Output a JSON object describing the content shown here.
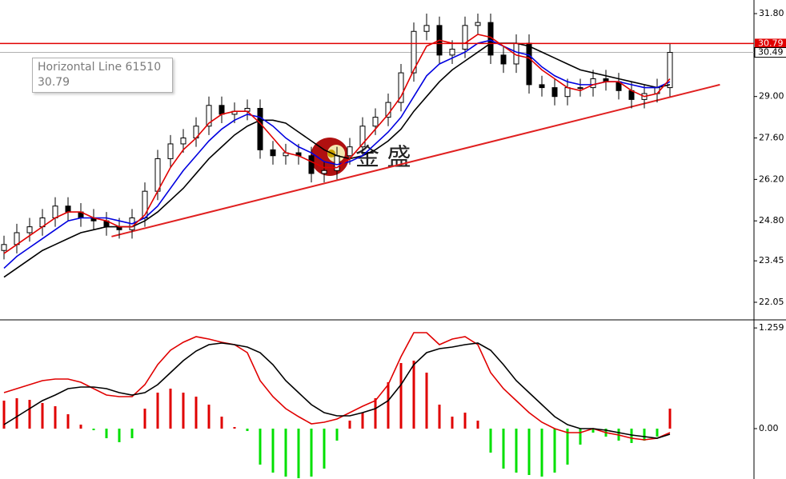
{
  "chart_data": [
    {
      "type": "candlestick",
      "open": [
        23.8,
        24.0,
        24.4,
        24.6,
        24.9,
        25.3,
        25.1,
        24.9,
        24.8,
        24.6,
        24.5,
        24.9,
        25.8,
        26.9,
        27.4,
        27.6,
        28.0,
        28.7,
        28.4,
        28.5,
        28.6,
        27.2,
        27.0,
        27.1,
        27.0,
        26.4,
        26.5,
        27.0,
        27.3,
        28.0,
        28.3,
        28.8,
        29.8,
        31.2,
        31.4,
        30.4,
        30.6,
        31.4,
        31.5,
        30.4,
        30.1,
        30.8,
        29.4,
        29.3,
        29.0,
        29.3,
        29.3,
        29.6,
        29.5,
        29.2,
        28.9,
        29.1,
        29.3
      ],
      "high": [
        24.3,
        24.7,
        24.9,
        25.2,
        25.6,
        25.6,
        25.4,
        25.2,
        25.1,
        24.9,
        25.2,
        26.1,
        27.2,
        27.7,
        27.9,
        28.3,
        29.0,
        29.0,
        28.8,
        28.9,
        28.9,
        27.5,
        27.4,
        27.4,
        27.3,
        26.8,
        27.3,
        27.6,
        28.3,
        28.6,
        29.1,
        30.1,
        31.5,
        31.8,
        31.7,
        30.9,
        31.7,
        31.8,
        31.8,
        30.7,
        31.1,
        31.1,
        29.7,
        29.6,
        29.6,
        29.6,
        29.9,
        29.9,
        29.8,
        29.5,
        29.4,
        29.6,
        30.8
      ],
      "low": [
        23.5,
        23.7,
        24.1,
        24.3,
        24.6,
        24.8,
        24.6,
        24.5,
        24.3,
        24.2,
        24.2,
        24.6,
        25.5,
        26.6,
        27.1,
        27.3,
        27.7,
        28.1,
        28.1,
        28.2,
        26.9,
        26.7,
        26.7,
        26.7,
        26.1,
        26.1,
        26.2,
        26.7,
        27.0,
        27.7,
        28.0,
        28.5,
        29.5,
        30.9,
        30.1,
        30.1,
        30.3,
        31.1,
        30.1,
        29.8,
        29.8,
        29.1,
        29.0,
        28.7,
        28.7,
        29.0,
        29.0,
        29.2,
        28.9,
        28.6,
        28.6,
        28.8,
        29.0
      ],
      "close": [
        24.0,
        24.4,
        24.6,
        24.9,
        25.3,
        25.1,
        24.9,
        24.8,
        24.6,
        24.5,
        24.9,
        25.8,
        26.9,
        27.4,
        27.6,
        28.0,
        28.7,
        28.4,
        28.5,
        28.6,
        27.2,
        27.0,
        27.1,
        27.0,
        26.4,
        26.5,
        27.0,
        27.3,
        28.0,
        28.3,
        28.8,
        29.8,
        31.2,
        31.4,
        30.4,
        30.6,
        31.4,
        31.5,
        30.4,
        30.1,
        30.8,
        29.4,
        29.3,
        29.0,
        29.3,
        29.3,
        29.6,
        29.5,
        29.2,
        28.9,
        29.1,
        29.3,
        30.49
      ],
      "series": [
        {
          "color": "#e00000",
          "values": [
            23.7,
            24.0,
            24.3,
            24.6,
            24.9,
            25.1,
            25.1,
            24.9,
            24.8,
            24.6,
            24.6,
            25.0,
            25.8,
            26.6,
            27.2,
            27.6,
            28.1,
            28.4,
            28.5,
            28.5,
            28.1,
            27.6,
            27.1,
            27.0,
            26.8,
            26.6,
            26.6,
            26.9,
            27.4,
            27.9,
            28.4,
            29.0,
            29.9,
            30.7,
            30.9,
            30.8,
            30.8,
            31.1,
            31.0,
            30.7,
            30.4,
            30.3,
            29.9,
            29.6,
            29.3,
            29.2,
            29.4,
            29.5,
            29.5,
            29.2,
            29.0,
            29.1,
            29.6
          ]
        },
        {
          "color": "#0000e0",
          "values": [
            23.2,
            23.6,
            23.9,
            24.2,
            24.5,
            24.8,
            24.9,
            24.9,
            24.9,
            24.8,
            24.7,
            24.9,
            25.3,
            25.9,
            26.5,
            27.0,
            27.5,
            27.9,
            28.2,
            28.4,
            28.3,
            28.0,
            27.6,
            27.3,
            27.1,
            26.8,
            26.7,
            26.8,
            27.0,
            27.4,
            27.8,
            28.3,
            29.0,
            29.7,
            30.1,
            30.3,
            30.5,
            30.8,
            30.9,
            30.7,
            30.5,
            30.4,
            30.0,
            29.7,
            29.5,
            29.4,
            29.4,
            29.5,
            29.5,
            29.4,
            29.3,
            29.3,
            29.5
          ]
        },
        {
          "color": "#000000",
          "values": [
            22.9,
            23.2,
            23.5,
            23.8,
            24.0,
            24.2,
            24.4,
            24.5,
            24.6,
            24.6,
            24.6,
            24.8,
            25.1,
            25.5,
            25.9,
            26.4,
            26.9,
            27.3,
            27.7,
            28.0,
            28.2,
            28.2,
            28.1,
            27.8,
            27.5,
            27.2,
            27.0,
            26.9,
            27.0,
            27.2,
            27.5,
            27.9,
            28.5,
            29.0,
            29.5,
            29.9,
            30.2,
            30.5,
            30.8,
            30.8,
            30.8,
            30.7,
            30.5,
            30.3,
            30.1,
            29.9,
            29.8,
            29.7,
            29.6,
            29.5,
            29.4,
            29.3,
            29.4
          ]
        }
      ],
      "trendline": {
        "x": [
          8.4,
          55.9
        ],
        "values": [
          24.27,
          29.4
        ],
        "color": "#e02020"
      },
      "hline": {
        "name": "Horizontal Line 61510",
        "value": 30.79,
        "label": "30.79",
        "color": "#e00000"
      },
      "last_price": {
        "value": 30.49,
        "label": "30.49"
      },
      "watermark": "金 盛",
      "ylim": [
        21.51,
        32.26
      ],
      "yticks": [
        {
          "value": 31.8,
          "label": "31.80"
        },
        {
          "value": 29,
          "label": "29.00"
        },
        {
          "value": 27.6,
          "label": "27.60"
        },
        {
          "value": 26.2,
          "label": "26.20"
        },
        {
          "value": 24.8,
          "label": "24.80"
        },
        {
          "value": 23.45,
          "label": "23.45"
        },
        {
          "value": 22.05,
          "label": "22.05"
        }
      ]
    },
    {
      "type": "macd",
      "histogram": {
        "up_color": "#e00000",
        "down_color": "#00e000",
        "values": [
          0.35,
          0.38,
          0.36,
          0.32,
          0.28,
          0.18,
          0.05,
          -0.02,
          -0.12,
          -0.17,
          -0.12,
          0.25,
          0.45,
          0.5,
          0.45,
          0.4,
          0.3,
          0.15,
          0.02,
          -0.03,
          -0.45,
          -0.55,
          -0.6,
          -0.62,
          -0.6,
          -0.5,
          -0.15,
          0.1,
          0.2,
          0.38,
          0.58,
          0.82,
          0.85,
          0.7,
          0.3,
          0.15,
          0.2,
          0.1,
          -0.3,
          -0.5,
          -0.55,
          -0.58,
          -0.6,
          -0.55,
          -0.45,
          -0.2,
          -0.05,
          -0.1,
          -0.15,
          -0.18,
          -0.15,
          -0.1,
          0.25
        ]
      },
      "series": [
        {
          "color": "#e00000",
          "values": [
            0.45,
            0.5,
            0.55,
            0.6,
            0.62,
            0.62,
            0.58,
            0.5,
            0.42,
            0.4,
            0.4,
            0.55,
            0.8,
            0.98,
            1.08,
            1.15,
            1.12,
            1.08,
            1.05,
            0.95,
            0.6,
            0.4,
            0.25,
            0.15,
            0.06,
            0.08,
            0.12,
            0.2,
            0.28,
            0.35,
            0.55,
            0.9,
            1.2,
            1.2,
            1.05,
            1.12,
            1.15,
            1.05,
            0.7,
            0.5,
            0.35,
            0.2,
            0.08,
            0.0,
            -0.05,
            -0.05,
            0.0,
            -0.05,
            -0.08,
            -0.12,
            -0.14,
            -0.12,
            -0.05
          ]
        },
        {
          "color": "#000000",
          "values": [
            0.05,
            0.15,
            0.25,
            0.35,
            0.42,
            0.5,
            0.52,
            0.52,
            0.5,
            0.45,
            0.42,
            0.45,
            0.55,
            0.7,
            0.85,
            0.97,
            1.05,
            1.07,
            1.05,
            1.02,
            0.95,
            0.8,
            0.6,
            0.45,
            0.3,
            0.2,
            0.16,
            0.16,
            0.2,
            0.25,
            0.35,
            0.55,
            0.8,
            0.95,
            1.0,
            1.02,
            1.05,
            1.07,
            0.98,
            0.8,
            0.6,
            0.45,
            0.3,
            0.15,
            0.05,
            0.0,
            0.0,
            -0.02,
            -0.05,
            -0.08,
            -0.1,
            -0.12,
            -0.07
          ]
        }
      ],
      "ylim": [
        -0.63,
        1.34
      ],
      "yticks": [
        1.259,
        {
          "value": 0,
          "label": "0.00"
        }
      ]
    }
  ]
}
